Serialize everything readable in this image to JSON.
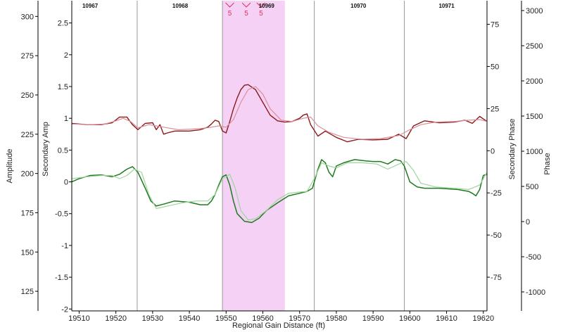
{
  "chart_data": {
    "type": "line",
    "xlabel": "Regional Gain Distance (ft)",
    "xlim": [
      19508,
      19621
    ],
    "x_ticks": [
      19510,
      19520,
      19530,
      19540,
      19550,
      19560,
      19570,
      19580,
      19590,
      19600,
      19610,
      19620
    ],
    "axes": {
      "amplitude": {
        "label": "Amplitude",
        "range": [
          112.5,
          310
        ],
        "ticks": [
          125,
          150,
          175,
          200,
          225,
          250,
          275,
          300
        ]
      },
      "secondary_amp": {
        "label": "Secondary Amp",
        "range": [
          -2.03,
          2.85
        ],
        "ticks": [
          "-2",
          "-1.5",
          "-1",
          "-0.5",
          "0",
          "0.5",
          "1",
          "1.5",
          "2",
          "2.5"
        ]
      },
      "secondary_phase": {
        "label": "Secondary Phase",
        "range": [
          -95,
          89
        ],
        "ticks": [
          "-75",
          "-50",
          "-25",
          "0",
          "25",
          "50",
          "75"
        ]
      },
      "phase": {
        "label": "Phase",
        "range": [
          -1270,
          3140
        ],
        "ticks": [
          "-1000",
          "-500",
          "0",
          "500",
          "1000",
          "1500",
          "2000",
          "2500",
          "3000"
        ]
      }
    },
    "segment_boundaries": [
      19525.8,
      19549,
      19574,
      19598.5
    ],
    "segments": [
      {
        "label": "10967",
        "x": 19513
      },
      {
        "label": "10968",
        "x": 19537.5
      },
      {
        "label": "10969",
        "x": 19561
      },
      {
        "label": "10970",
        "x": 19586
      },
      {
        "label": "10971",
        "x": 19610
      }
    ],
    "highlight": {
      "x_start": 19549,
      "x_end": 19566,
      "color": "#f5d2f5"
    },
    "markers": [
      {
        "x": 19551,
        "label": "5"
      },
      {
        "x": 19555.5,
        "label": "5"
      },
      {
        "x": 19559.5,
        "label": "5"
      }
    ],
    "colors": {
      "amp_primary": "#8b1a1a",
      "amp_secondary": "#d9909a",
      "phase_primary": "#1e7a1e",
      "phase_secondary": "#9ed49e",
      "marker": "#e0305a"
    },
    "series": [
      {
        "axis": "secondary_amp",
        "style": "amp_primary",
        "x": [
          19508,
          19512,
          19516,
          19519,
          19521,
          19523,
          19524.5,
          19526,
          19528,
          19530,
          19531,
          19532,
          19533,
          19534,
          19536,
          19540,
          19543,
          19545,
          19546,
          19547,
          19548,
          19549,
          19550,
          19551,
          19552,
          19553,
          19554,
          19555,
          19556,
          19558,
          19560,
          19562,
          19564,
          19566,
          19568,
          19570,
          19571,
          19572,
          19573,
          19575,
          19577,
          19580,
          19583,
          19586,
          19590,
          19594,
          19597,
          19599,
          19601,
          19604,
          19608,
          19612,
          19615,
          19617,
          19619,
          19621
        ],
        "y": [
          0.92,
          0.9,
          0.9,
          0.93,
          1.02,
          1.02,
          0.9,
          0.82,
          0.92,
          0.93,
          0.82,
          0.9,
          0.75,
          0.77,
          0.8,
          0.8,
          0.82,
          0.86,
          0.91,
          0.97,
          0.95,
          0.8,
          0.77,
          0.95,
          1.15,
          1.32,
          1.45,
          1.52,
          1.53,
          1.45,
          1.25,
          1.05,
          0.96,
          0.94,
          0.95,
          1.0,
          1.05,
          1.07,
          0.9,
          0.72,
          0.8,
          0.7,
          0.63,
          0.67,
          0.66,
          0.67,
          0.75,
          0.68,
          0.88,
          0.96,
          0.93,
          0.94,
          0.97,
          0.92,
          1.03,
          0.95
        ]
      },
      {
        "axis": "secondary_amp",
        "style": "amp_secondary",
        "x": [
          19508,
          19513,
          19517,
          19520,
          19522,
          19524,
          19526,
          19529,
          19533,
          19537,
          19541,
          19545,
          19548,
          19550,
          19552,
          19554,
          19556,
          19558,
          19560,
          19562,
          19565,
          19568,
          19571,
          19573,
          19575,
          19578,
          19582,
          19587,
          19592,
          19597,
          19600,
          19603,
          19607,
          19612,
          19616,
          19619,
          19621
        ],
        "y": [
          0.91,
          0.9,
          0.91,
          0.96,
          1.0,
          0.95,
          0.85,
          0.9,
          0.86,
          0.82,
          0.83,
          0.85,
          0.88,
          0.86,
          0.98,
          1.25,
          1.45,
          1.5,
          1.38,
          1.15,
          0.97,
          0.95,
          1.0,
          1.02,
          0.88,
          0.78,
          0.7,
          0.67,
          0.68,
          0.73,
          0.82,
          0.9,
          0.94,
          0.95,
          0.97,
          0.98,
          0.95
        ]
      },
      {
        "axis": "secondary_amp",
        "style": "phase_primary",
        "x": [
          19508,
          19510,
          19513,
          19516,
          19519,
          19521,
          19523,
          19524.5,
          19526,
          19528,
          19529.5,
          19531,
          19533,
          19536,
          19540,
          19543,
          19545,
          19546,
          19547,
          19548,
          19549,
          19550,
          19551,
          19552,
          19553,
          19555,
          19557,
          19559,
          19561,
          19564,
          19567,
          19570,
          19572,
          19573.5,
          19575,
          19576,
          19577,
          19578,
          19579,
          19580,
          19582,
          19585,
          19588,
          19590,
          19592,
          19594,
          19596,
          19597.5,
          19598.5,
          19600,
          19602,
          19604,
          19608,
          19613,
          19616,
          19617,
          19618,
          19619,
          19620,
          19621
        ],
        "y": [
          0.0,
          0.05,
          0.1,
          0.11,
          0.08,
          0.12,
          0.2,
          0.24,
          0.15,
          -0.1,
          -0.3,
          -0.38,
          -0.35,
          -0.3,
          -0.32,
          -0.36,
          -0.36,
          -0.3,
          -0.2,
          -0.05,
          0.08,
          0.11,
          -0.05,
          -0.3,
          -0.5,
          -0.62,
          -0.64,
          -0.57,
          -0.45,
          -0.33,
          -0.22,
          -0.18,
          -0.15,
          -0.1,
          0.2,
          0.35,
          0.3,
          0.15,
          0.08,
          0.25,
          0.3,
          0.35,
          0.33,
          0.32,
          0.32,
          0.28,
          0.35,
          0.33,
          0.25,
          0.0,
          -0.08,
          -0.1,
          -0.1,
          -0.12,
          -0.15,
          -0.18,
          -0.22,
          -0.12,
          0.1,
          0.12
        ]
      },
      {
        "axis": "secondary_amp",
        "style": "phase_secondary",
        "x": [
          19508,
          19512,
          19516,
          19519,
          19521,
          19523,
          19525,
          19527,
          19529,
          19531,
          19534,
          19538,
          19542,
          19545,
          19547,
          19549,
          19551,
          19552.5,
          19554,
          19556,
          19558,
          19561,
          19564,
          19567,
          19570,
          19572,
          19574,
          19576,
          19578,
          19580,
          19583,
          19587,
          19591,
          19594,
          19597,
          19599,
          19601,
          19603,
          19607,
          19612,
          19616,
          19619,
          19621
        ],
        "y": [
          0.05,
          0.08,
          0.1,
          0.1,
          0.05,
          0.1,
          0.2,
          0.15,
          -0.2,
          -0.42,
          -0.38,
          -0.33,
          -0.3,
          -0.3,
          -0.2,
          0.05,
          0.12,
          -0.1,
          -0.45,
          -0.6,
          -0.58,
          -0.45,
          -0.28,
          -0.18,
          -0.16,
          -0.15,
          0.05,
          0.3,
          0.25,
          0.22,
          0.3,
          0.3,
          0.28,
          0.2,
          0.28,
          0.32,
          0.18,
          -0.02,
          -0.08,
          -0.1,
          -0.12,
          -0.05,
          0.15
        ]
      }
    ]
  }
}
